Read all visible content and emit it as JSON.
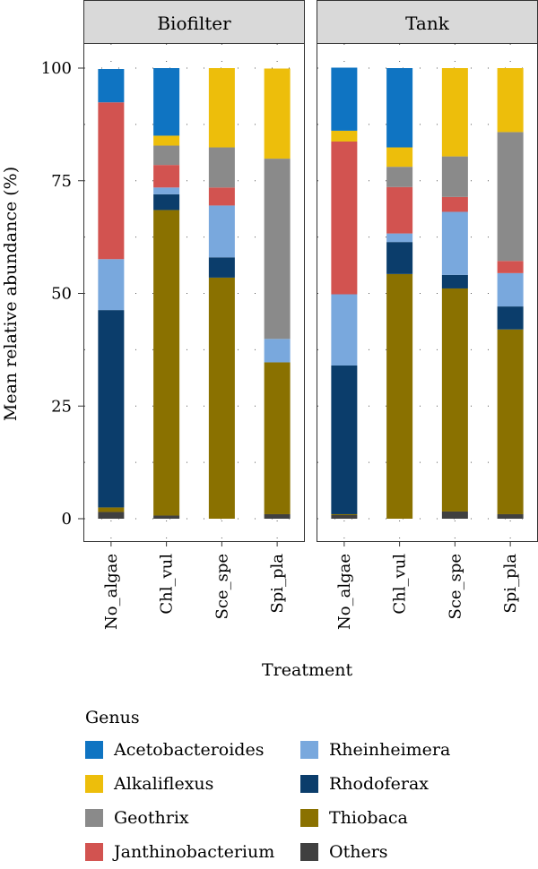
{
  "chart_data": {
    "type": "bar",
    "stacked": true,
    "facets": [
      "Biofilter",
      "Tank"
    ],
    "categories": [
      "No_algae",
      "Chl_vul",
      "Sce_spe",
      "Spi_pla"
    ],
    "xlabel": "Treatment",
    "ylabel": "Mean relative abundance (%)",
    "ylim": [
      0,
      100
    ],
    "yticks": [
      0,
      25,
      50,
      75,
      100
    ],
    "grid": "dotted",
    "legend_title": "Genus",
    "legend_position": "bottom",
    "stack_order": [
      "Others",
      "Thiobaca",
      "Rhodoferax",
      "Rheinheimera",
      "Janthinobacterium",
      "Geothrix",
      "Alkaliflexus",
      "Acetobacteroides"
    ],
    "series": [
      {
        "name": "Acetobacteroides",
        "color": "#0F74C2",
        "values": {
          "Biofilter": [
            7.4,
            15.0,
            0,
            0
          ],
          "Tank": [
            14.0,
            17.6,
            0,
            0
          ]
        }
      },
      {
        "name": "Alkaliflexus",
        "color": "#EDBE0B",
        "values": {
          "Biofilter": [
            0,
            2.2,
            17.6,
            20.0
          ],
          "Tank": [
            2.4,
            4.3,
            19.6,
            14.2
          ]
        }
      },
      {
        "name": "Geothrix",
        "color": "#8A8A8A",
        "values": {
          "Biofilter": [
            0,
            4.3,
            8.9,
            40.0
          ],
          "Tank": [
            0,
            4.5,
            9.0,
            28.6
          ]
        }
      },
      {
        "name": "Janthinobacterium",
        "color": "#D25350",
        "values": {
          "Biofilter": [
            34.8,
            5.0,
            4.0,
            0
          ],
          "Tank": [
            33.9,
            10.3,
            3.3,
            2.7
          ]
        }
      },
      {
        "name": "Rheinheimera",
        "color": "#79A8DD",
        "values": {
          "Biofilter": [
            11.3,
            1.5,
            11.5,
            5.2
          ],
          "Tank": [
            15.8,
            1.9,
            14.0,
            7.4
          ]
        }
      },
      {
        "name": "Rhodoferax",
        "color": "#0B3D6B",
        "values": {
          "Biofilter": [
            43.8,
            3.5,
            4.5,
            0
          ],
          "Tank": [
            33.0,
            7.1,
            3.0,
            5.1
          ]
        }
      },
      {
        "name": "Thiobaca",
        "color": "#8A7100",
        "values": {
          "Biofilter": [
            1.0,
            67.8,
            53.5,
            33.7
          ],
          "Tank": [
            0.2,
            54.3,
            49.5,
            41.0
          ]
        }
      },
      {
        "name": "Others",
        "color": "#404040",
        "values": {
          "Biofilter": [
            1.5,
            0.7,
            0,
            1.0
          ],
          "Tank": [
            0.8,
            0,
            1.6,
            1.0
          ]
        }
      }
    ]
  }
}
